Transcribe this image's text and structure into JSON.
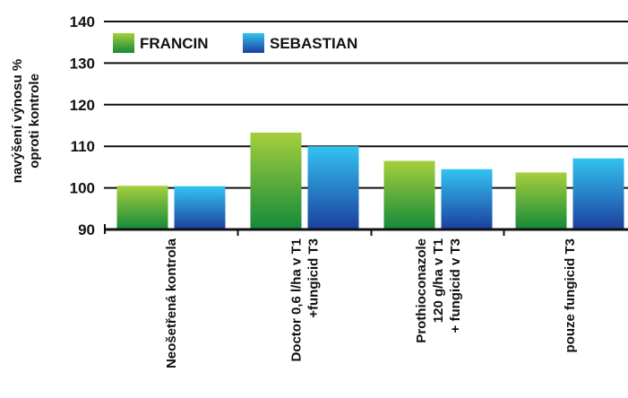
{
  "chart_data": {
    "type": "bar",
    "title": "",
    "ylabel_lines": [
      "navýšení výnosu %",
      "oproti kontrole"
    ],
    "ylim": [
      90,
      140
    ],
    "yticks": [
      90,
      100,
      110,
      120,
      130,
      140
    ],
    "grid": true,
    "legend_position": "top-left",
    "categories": [
      [
        "Neošetřená kontrola"
      ],
      [
        "Doctor 0,6 l/ha v T1",
        "+fungicid T3"
      ],
      [
        "Prothioconazole",
        "120 g/ha v T1",
        "+ fungicid v T3"
      ],
      [
        "pouze fungicid T3"
      ]
    ],
    "series": [
      {
        "name": "FRANCIN",
        "values": [
          100.5,
          113.3,
          106.5,
          103.7
        ],
        "color_top": "#a6cf3c",
        "color_bottom": "#138a3a"
      },
      {
        "name": "SEBASTIAN",
        "values": [
          100.4,
          110.0,
          104.5,
          107.1
        ],
        "color_top": "#33c3f0",
        "color_bottom": "#1c3f9e"
      }
    ]
  }
}
